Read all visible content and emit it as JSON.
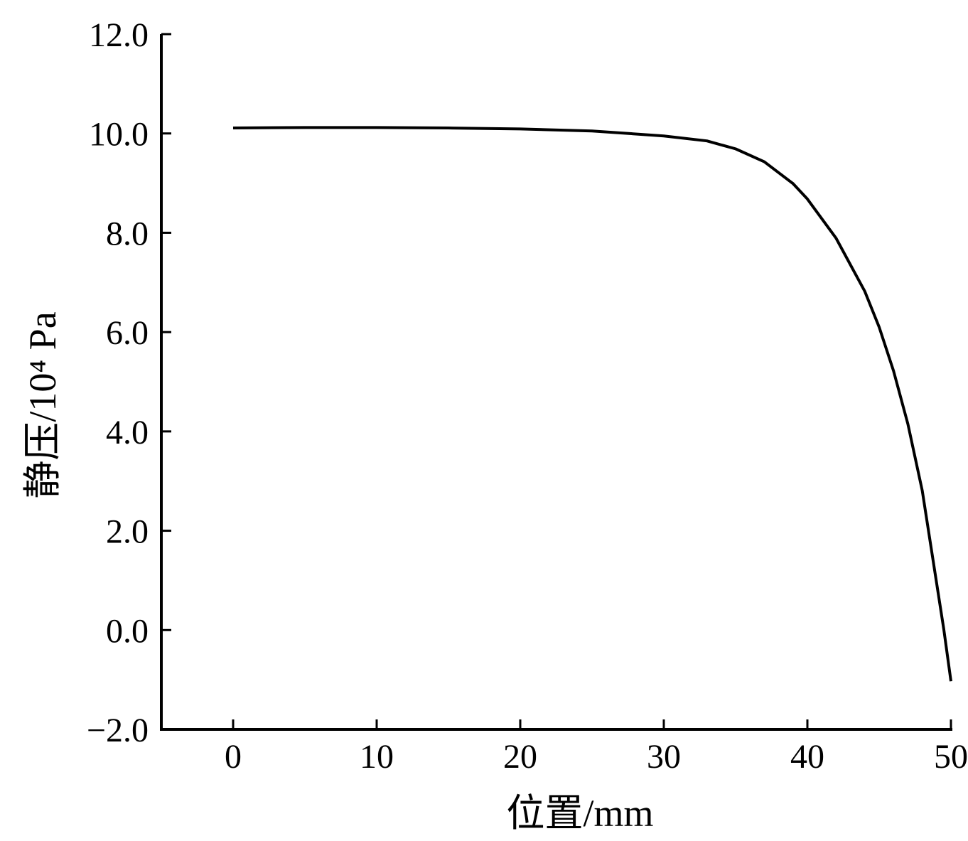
{
  "chart_data": {
    "type": "line",
    "x_label": "位置/mm",
    "y_label": "静压/10⁴ Pa",
    "x": [
      0,
      5,
      10,
      15,
      20,
      25,
      30,
      33,
      35,
      37,
      39,
      40,
      42,
      44,
      45,
      46,
      47,
      48,
      49,
      49.5,
      50
    ],
    "series": [
      {
        "color": "#000000",
        "values": [
          10.11,
          10.12,
          10.12,
          10.11,
          10.09,
          10.05,
          9.95,
          9.85,
          9.69,
          9.43,
          8.99,
          8.68,
          7.89,
          6.82,
          6.1,
          5.22,
          4.15,
          2.81,
          0.95,
          0.02,
          -1.03
        ]
      }
    ],
    "xlim": [
      -5,
      50
    ],
    "ylim": [
      -2,
      12
    ],
    "xticks": [
      0,
      10,
      20,
      30,
      40,
      50
    ],
    "yticks": [
      {
        "value": -2,
        "label": "−2.0"
      },
      {
        "value": 0,
        "label": "0.0"
      },
      {
        "value": 2,
        "label": "2.0"
      },
      {
        "value": 4,
        "label": "4.0"
      },
      {
        "value": 6,
        "label": "6.0"
      },
      {
        "value": 8,
        "label": "8.0"
      },
      {
        "value": 10,
        "label": "10.0"
      },
      {
        "value": 12,
        "label": "12.0"
      }
    ]
  }
}
